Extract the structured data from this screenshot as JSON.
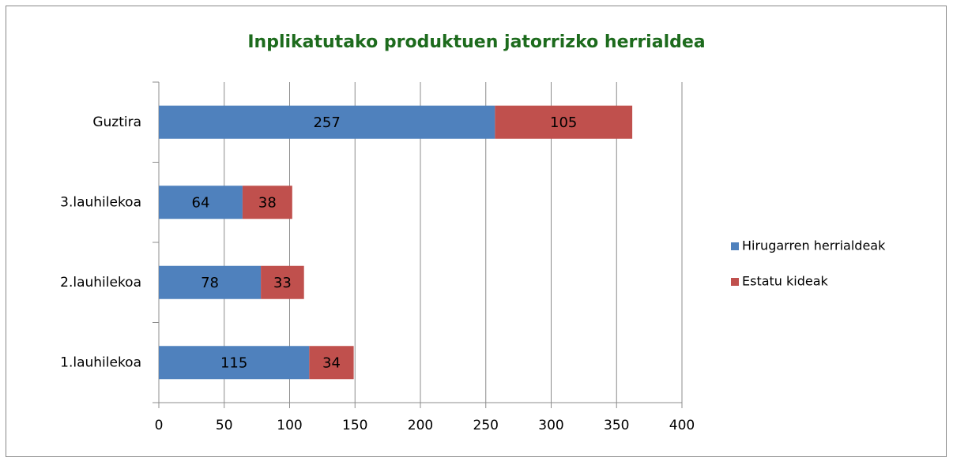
{
  "chart_data": {
    "type": "bar",
    "orientation": "horizontal",
    "stacked": true,
    "title": "Inplikatutako produktuen jatorrizko herrialdea",
    "categories": [
      "1.lauhilekoa",
      "2.lauhilekoa",
      "3.lauhilekoa",
      "Guztira"
    ],
    "series": [
      {
        "name": "Hirugarren herrialdeak",
        "color": "#4f81bd",
        "values": [
          115,
          78,
          64,
          257
        ]
      },
      {
        "name": "Estatu kideak",
        "color": "#c0504d",
        "values": [
          34,
          33,
          38,
          105
        ]
      }
    ],
    "xlim": [
      0,
      400
    ],
    "xticks": [
      0,
      50,
      100,
      150,
      200,
      250,
      300,
      350,
      400
    ],
    "grid": true,
    "legend": "right"
  }
}
